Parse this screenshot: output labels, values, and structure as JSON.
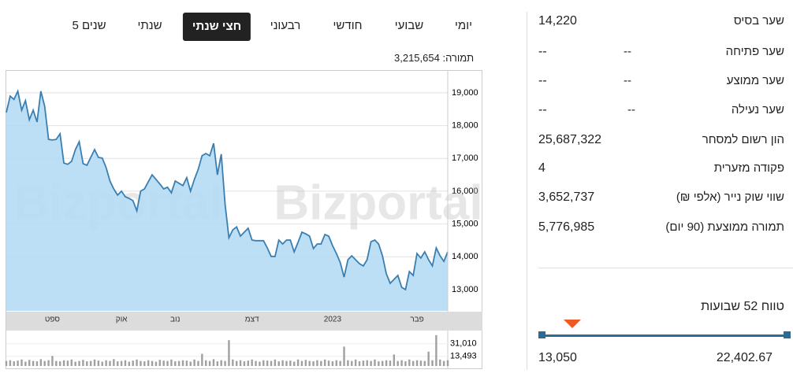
{
  "tabs": [
    "יומי",
    "שבועי",
    "חודשי",
    "רבעוני",
    "חצי שנתי",
    "שנתי",
    "5 שנים"
  ],
  "active_tab": 4,
  "turnover": {
    "label": "תמורה:",
    "value": "3,215,654"
  },
  "stats": [
    {
      "label": "שער בסיס",
      "value": "14,220"
    },
    {
      "label": "שער פתיחה",
      "value": "--",
      "change": "--"
    },
    {
      "label": "שער ממוצע",
      "value": "--",
      "change": "--"
    },
    {
      "label": "שער נעילה",
      "value": "--",
      "change": "--"
    },
    {
      "label": "הון רשום למסחר",
      "value": "25,687,322"
    },
    {
      "label": "פקודה מזערית",
      "value": "4"
    },
    {
      "label": "שווי שוק נייר (אלפי ₪)",
      "value": "3,652,737"
    },
    {
      "label": "תמורה ממוצעת (90 יום)",
      "value": "5,776,985"
    }
  ],
  "range_52w": {
    "title": "טווח 52 שבועות",
    "low": 13050,
    "low_label": "13,050",
    "high": 22402.67,
    "high_label": "22,402.67",
    "current": 14220
  },
  "chart_data": {
    "type": "line",
    "watermark": "Bizportal",
    "color": "#3a7fb0",
    "fill": "#b5dcf4",
    "categories": [
      null,
      null,
      null,
      null,
      null,
      null,
      null,
      null,
      null,
      null,
      null,
      null,
      "ספט",
      null,
      null,
      null,
      null,
      null,
      null,
      null,
      null,
      null,
      null,
      null,
      null,
      null,
      null,
      null,
      null,
      null,
      "אוק",
      null,
      null,
      null,
      null,
      null,
      null,
      null,
      null,
      null,
      null,
      null,
      null,
      null,
      "נוב",
      null,
      null,
      null,
      null,
      null,
      null,
      null,
      null,
      null,
      null,
      null,
      null,
      null,
      null,
      null,
      null,
      null,
      null,
      null,
      "דצמ",
      null,
      null,
      null,
      null,
      null,
      null,
      null,
      null,
      null,
      null,
      null,
      null,
      null,
      null,
      null,
      null,
      null,
      null,
      null,
      null,
      "2023",
      null,
      null,
      null,
      null,
      null,
      null,
      null,
      null,
      null,
      null,
      null,
      null,
      null,
      null,
      null,
      null,
      null,
      null,
      null,
      null,
      null,
      "פבר",
      null,
      null,
      null,
      null,
      null,
      null,
      null,
      null
    ],
    "values": [
      18400,
      18900,
      18800,
      19050,
      18470,
      18760,
      18180,
      18470,
      18110,
      19050,
      18590,
      17580,
      17560,
      17580,
      17750,
      16860,
      16820,
      16910,
      17270,
      17510,
      16840,
      16790,
      17030,
      17270,
      17030,
      17010,
      16720,
      16310,
      16070,
      15880,
      16000,
      15830,
      15780,
      15710,
      15400,
      16000,
      16070,
      16290,
      16500,
      16360,
      16220,
      16070,
      16120,
      15950,
      16310,
      16240,
      16170,
      16410,
      16000,
      16360,
      16670,
      17080,
      17150,
      17080,
      17460,
      16500,
      17130,
      15590,
      14580,
      14820,
      14910,
      14630,
      14750,
      14870,
      14510,
      14490,
      14490,
      14490,
      14270,
      14010,
      14010,
      14510,
      14390,
      14510,
      14510,
      14150,
      14440,
      14750,
      14700,
      14630,
      14250,
      14390,
      14390,
      14680,
      14630,
      14340,
      14100,
      13820,
      13380,
      13910,
      14030,
      13910,
      13790,
      13720,
      13910,
      14460,
      14510,
      14390,
      14030,
      13480,
      13190,
      13310,
      13430,
      13070,
      13000,
      13550,
      13430,
      14100,
      13960,
      14150,
      13910,
      13720,
      14270,
      14030,
      13860,
      14150
    ],
    "ylim": [
      12350,
      19670
    ],
    "yticks": [
      {
        "value": 13000,
        "label": "13,000"
      },
      {
        "value": 14000,
        "label": "14,000"
      },
      {
        "value": 15000,
        "label": "15,000"
      },
      {
        "value": 16000,
        "label": "16,000"
      },
      {
        "value": 17000,
        "label": "17,000"
      },
      {
        "value": 18000,
        "label": "18,000"
      },
      {
        "value": 19000,
        "label": "19,000"
      }
    ],
    "grid": true,
    "volume_color": "#a0a0a0",
    "volume_values": [
      7000,
      8000,
      6500,
      7500,
      9000,
      6000,
      8500,
      7000,
      6500,
      9500,
      7000,
      8000,
      14000,
      7000,
      6500,
      8000,
      7500,
      9000,
      6000,
      7000,
      8500,
      6500,
      7000,
      9000,
      7500,
      6000,
      8000,
      7000,
      9500,
      6500,
      7000,
      8000,
      6000,
      7500,
      9000,
      7000,
      6500,
      8000,
      7000,
      6000,
      8500,
      7500,
      7000,
      9000,
      6500,
      7000,
      8000,
      7500,
      6000,
      9000,
      7000,
      17000,
      8000,
      7000,
      9500,
      6500,
      8000,
      7000,
      36000,
      9000,
      7000,
      8000,
      6500,
      7500,
      9000,
      7000,
      6000,
      8000,
      7500,
      7000,
      9000,
      6500,
      8000,
      7000,
      7500,
      6000,
      9000,
      7000,
      8500,
      7000,
      6500,
      8000,
      7000,
      9000,
      7500,
      6500,
      8000,
      7000,
      27000,
      8000,
      7000,
      9000,
      6500,
      7500,
      8000,
      7000,
      9000,
      6500,
      7000,
      8000,
      7500,
      16000,
      7000,
      8000,
      6500,
      9000,
      7000,
      8000,
      7500,
      7000,
      20000,
      8000,
      43000,
      9000,
      7000,
      8000
    ],
    "volume_ylim": [
      0,
      45000
    ],
    "volume_yticks": [
      {
        "value": 13493,
        "label": "13,493"
      },
      {
        "value": 31010,
        "label": "31,010"
      }
    ]
  }
}
